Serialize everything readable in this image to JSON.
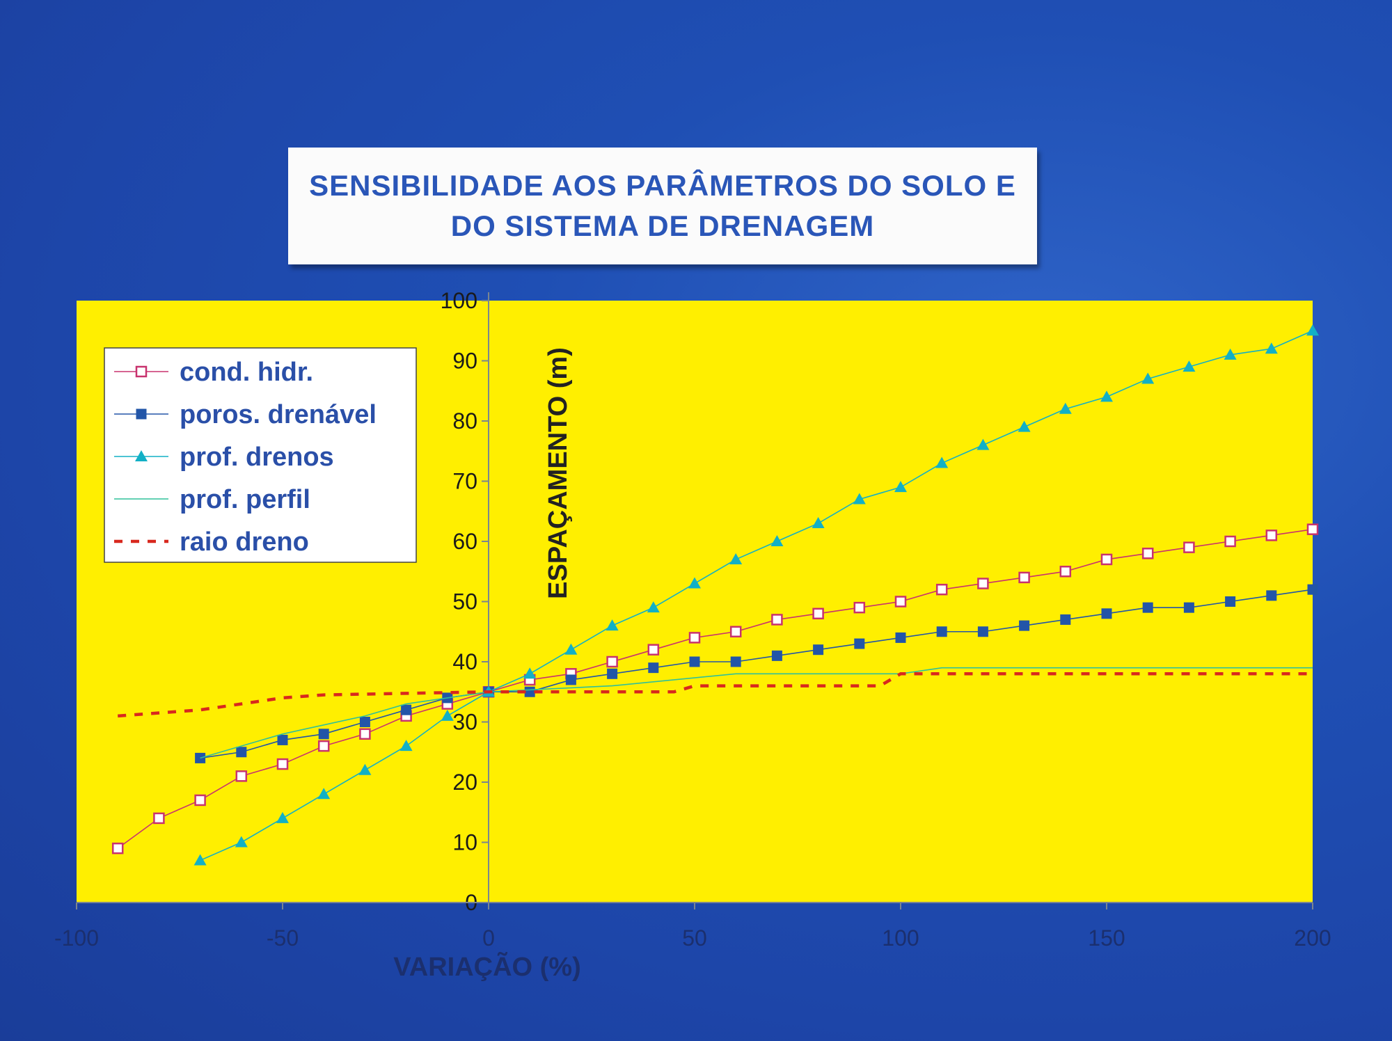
{
  "title_lines": [
    "SENSIBILIDADE AOS PARÂMETROS DO SOLO E",
    "DO SISTEMA DE DRENAGEM"
  ],
  "colors": {
    "background": "#1f4fb4",
    "plot_area": "#ffef00",
    "cond_hidr": "#c8326e",
    "poros_drenavel": "#2255a8",
    "prof_drenos": "#12b0c6",
    "prof_perfil": "#2fc09a",
    "raio_dreno": "#d8281e"
  },
  "chart_data": {
    "type": "line",
    "title": "SENSIBILIDADE AOS PARÂMETROS DO SOLO E DO SISTEMA DE DRENAGEM",
    "xlabel": "VARIAÇÃO (%)",
    "ylabel": "ESPAÇAMENTO (m)",
    "xlim": [
      -100,
      200
    ],
    "ylim": [
      0,
      100
    ],
    "xticks": [
      -100,
      -50,
      0,
      50,
      100,
      150,
      200
    ],
    "yticks": [
      0,
      10,
      20,
      30,
      40,
      50,
      60,
      70,
      80,
      90,
      100
    ],
    "grid": false,
    "legend_position": "top-left",
    "series": [
      {
        "name": "cond. hidr.",
        "marker": "open-square",
        "points": [
          [
            -90,
            9
          ],
          [
            -80,
            14
          ],
          [
            -70,
            17
          ],
          [
            -60,
            21
          ],
          [
            -50,
            23
          ],
          [
            -40,
            26
          ],
          [
            -30,
            28
          ],
          [
            -20,
            31
          ],
          [
            -10,
            33
          ],
          [
            0,
            35
          ],
          [
            10,
            37
          ],
          [
            20,
            38
          ],
          [
            30,
            40
          ],
          [
            40,
            42
          ],
          [
            50,
            44
          ],
          [
            60,
            45
          ],
          [
            70,
            47
          ],
          [
            80,
            48
          ],
          [
            90,
            49
          ],
          [
            100,
            50
          ],
          [
            110,
            52
          ],
          [
            120,
            53
          ],
          [
            130,
            54
          ],
          [
            140,
            55
          ],
          [
            150,
            57
          ],
          [
            160,
            58
          ],
          [
            170,
            59
          ],
          [
            180,
            60
          ],
          [
            190,
            61
          ],
          [
            200,
            62
          ]
        ]
      },
      {
        "name": "poros. drenável",
        "marker": "filled-square",
        "points": [
          [
            -70,
            24
          ],
          [
            -60,
            25
          ],
          [
            -50,
            27
          ],
          [
            -40,
            28
          ],
          [
            -30,
            30
          ],
          [
            -20,
            32
          ],
          [
            -10,
            34
          ],
          [
            0,
            35
          ],
          [
            10,
            35
          ],
          [
            20,
            37
          ],
          [
            30,
            38
          ],
          [
            40,
            39
          ],
          [
            50,
            40
          ],
          [
            60,
            40
          ],
          [
            70,
            41
          ],
          [
            80,
            42
          ],
          [
            90,
            43
          ],
          [
            100,
            44
          ],
          [
            110,
            45
          ],
          [
            120,
            45
          ],
          [
            130,
            46
          ],
          [
            140,
            47
          ],
          [
            150,
            48
          ],
          [
            160,
            49
          ],
          [
            170,
            49
          ],
          [
            180,
            50
          ],
          [
            190,
            51
          ],
          [
            200,
            52
          ]
        ]
      },
      {
        "name": "prof. drenos",
        "marker": "triangle",
        "points": [
          [
            -70,
            7
          ],
          [
            -60,
            10
          ],
          [
            -50,
            14
          ],
          [
            -40,
            18
          ],
          [
            -30,
            22
          ],
          [
            -20,
            26
          ],
          [
            -10,
            31
          ],
          [
            0,
            35
          ],
          [
            10,
            38
          ],
          [
            20,
            42
          ],
          [
            30,
            46
          ],
          [
            40,
            49
          ],
          [
            50,
            53
          ],
          [
            60,
            57
          ],
          [
            70,
            60
          ],
          [
            80,
            63
          ],
          [
            90,
            67
          ],
          [
            100,
            69
          ],
          [
            110,
            73
          ],
          [
            120,
            76
          ],
          [
            130,
            79
          ],
          [
            140,
            82
          ],
          [
            150,
            84
          ],
          [
            160,
            87
          ],
          [
            170,
            89
          ],
          [
            180,
            91
          ],
          [
            190,
            92
          ],
          [
            200,
            95
          ]
        ]
      },
      {
        "name": "prof. perfil",
        "marker": "none",
        "line": "solid",
        "points": [
          [
            -70,
            24
          ],
          [
            -50,
            28
          ],
          [
            -30,
            31
          ],
          [
            -20,
            33
          ],
          [
            0,
            35
          ],
          [
            30,
            36
          ],
          [
            60,
            38
          ],
          [
            100,
            38
          ],
          [
            110,
            39
          ],
          [
            200,
            39
          ]
        ]
      },
      {
        "name": "raio dreno",
        "marker": "none",
        "line": "dashed",
        "points": [
          [
            -90,
            31
          ],
          [
            -70,
            32
          ],
          [
            -50,
            34
          ],
          [
            -40,
            34.5
          ],
          [
            0,
            35
          ],
          [
            45,
            35
          ],
          [
            50,
            36
          ],
          [
            95,
            36
          ],
          [
            100,
            38
          ],
          [
            200,
            38
          ]
        ]
      }
    ]
  }
}
